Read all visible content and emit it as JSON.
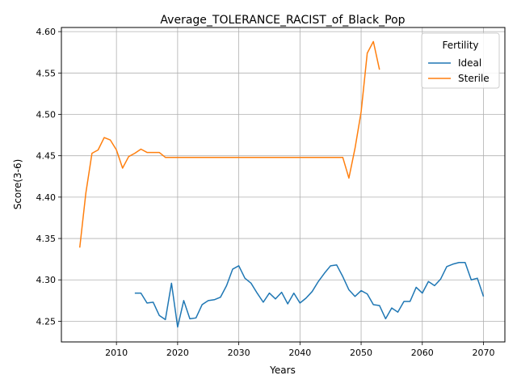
{
  "chart_data": {
    "type": "line",
    "title": "Average_TOLERANCE_RACIST_of_Black_Pop",
    "xlabel": "Years",
    "ylabel": "Score(3-6)",
    "xlim": [
      2001,
      2073.5
    ],
    "ylim": [
      4.225,
      4.605
    ],
    "xticks": [
      2010,
      2020,
      2030,
      2040,
      2050,
      2060,
      2070
    ],
    "yticks": [
      4.25,
      4.3,
      4.35,
      4.4,
      4.45,
      4.5,
      4.55,
      4.6
    ],
    "ytick_labels": [
      "4.25",
      "4.30",
      "4.35",
      "4.40",
      "4.45",
      "4.50",
      "4.55",
      "4.60"
    ],
    "grid": true,
    "legend": {
      "title": "Fertility",
      "position": "top-right"
    },
    "series": [
      {
        "name": "Ideal",
        "color": "#1f77b4",
        "x": [
          2013,
          2014,
          2015,
          2016,
          2017,
          2018,
          2019,
          2020,
          2021,
          2022,
          2023,
          2024,
          2025,
          2026,
          2027,
          2028,
          2029,
          2030,
          2031,
          2032,
          2033,
          2034,
          2035,
          2036,
          2037,
          2038,
          2039,
          2040,
          2041,
          2042,
          2043,
          2044,
          2045,
          2046,
          2047,
          2048,
          2049,
          2050,
          2051,
          2052,
          2053,
          2054,
          2055,
          2056,
          2057,
          2058,
          2059,
          2060,
          2061,
          2062,
          2063,
          2064,
          2065,
          2066,
          2067,
          2068,
          2069,
          2070
        ],
        "y": [
          4.284,
          4.284,
          4.272,
          4.273,
          4.257,
          4.252,
          4.296,
          4.243,
          4.275,
          4.253,
          4.254,
          4.27,
          4.275,
          4.276,
          4.279,
          4.293,
          4.313,
          4.317,
          4.302,
          4.296,
          4.284,
          4.273,
          4.284,
          4.277,
          4.285,
          4.271,
          4.284,
          4.272,
          4.278,
          4.286,
          4.298,
          4.308,
          4.317,
          4.318,
          4.304,
          4.288,
          4.28,
          4.287,
          4.283,
          4.27,
          4.269,
          4.253,
          4.266,
          4.261,
          4.274,
          4.274,
          4.291,
          4.284,
          4.298,
          4.293,
          4.301,
          4.316,
          4.319,
          4.321,
          4.321,
          4.3,
          4.302,
          4.28
        ]
      },
      {
        "name": "Sterile",
        "color": "#ff7f0e",
        "x": [
          2004,
          2005,
          2006,
          2007,
          2008,
          2009,
          2010,
          2011,
          2012,
          2013,
          2014,
          2015,
          2016,
          2017,
          2018,
          2019,
          2020,
          2021,
          2022,
          2023,
          2024,
          2025,
          2026,
          2027,
          2028,
          2029,
          2030,
          2031,
          2032,
          2033,
          2034,
          2035,
          2036,
          2037,
          2038,
          2039,
          2040,
          2041,
          2042,
          2043,
          2044,
          2045,
          2046,
          2047,
          2048,
          2049,
          2050,
          2051,
          2052,
          2053
        ],
        "y": [
          4.339,
          4.405,
          4.453,
          4.457,
          4.472,
          4.469,
          4.457,
          4.435,
          4.449,
          4.453,
          4.458,
          4.454,
          4.454,
          4.454,
          4.448,
          4.448,
          4.448,
          4.448,
          4.448,
          4.448,
          4.448,
          4.448,
          4.448,
          4.448,
          4.448,
          4.448,
          4.448,
          4.448,
          4.448,
          4.448,
          4.448,
          4.448,
          4.448,
          4.448,
          4.448,
          4.448,
          4.448,
          4.448,
          4.448,
          4.448,
          4.448,
          4.448,
          4.448,
          4.448,
          4.423,
          4.459,
          4.503,
          4.574,
          4.588,
          4.554
        ]
      }
    ]
  }
}
